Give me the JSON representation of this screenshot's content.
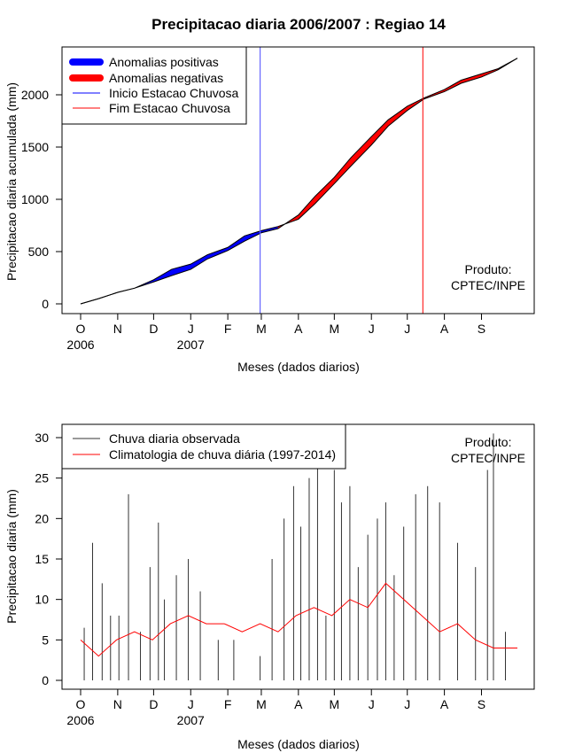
{
  "chart_data": [
    {
      "type": "area",
      "title": "Precipitacao diaria 2006/2007 : Regiao 14",
      "xlabel": "Meses (dados diarios)",
      "ylabel": "Precipitacao diaria acumulada (mm)",
      "ylim": [
        0,
        2400
      ],
      "yticks": [
        0,
        500,
        1000,
        1500,
        2000
      ],
      "month_labels": [
        "O",
        "N",
        "D",
        "J",
        "F",
        "M",
        "A",
        "M",
        "J",
        "J",
        "A",
        "S"
      ],
      "year_labels": [
        {
          "label": "2006",
          "month_index": 0
        },
        {
          "label": "2007",
          "month_index": 3
        }
      ],
      "x_days": [
        0,
        15,
        31,
        45,
        61,
        76,
        92,
        106,
        123,
        137,
        151,
        165,
        182,
        196,
        212,
        226,
        243,
        257,
        273,
        287,
        304,
        318,
        335,
        349,
        365
      ],
      "observed": [
        0,
        50,
        110,
        150,
        230,
        330,
        380,
        470,
        540,
        650,
        700,
        740,
        810,
        960,
        1150,
        1320,
        1520,
        1700,
        1850,
        1960,
        2030,
        2110,
        2170,
        2240,
        2350
      ],
      "climatology": [
        0,
        50,
        110,
        150,
        210,
        270,
        330,
        430,
        510,
        600,
        680,
        720,
        850,
        1030,
        1210,
        1400,
        1600,
        1760,
        1890,
        1970,
        2050,
        2140,
        2200,
        2250,
        2350
      ],
      "start_rainy_season_day": 150,
      "end_rainy_season_day": 286,
      "legend": [
        {
          "label": "Anomalias positivas",
          "color": "#0000ff",
          "style": "thick"
        },
        {
          "label": "Anomalias negativas",
          "color": "#ff0000",
          "style": "thick"
        },
        {
          "label": "Inicio Estacao Chuvosa",
          "color": "#0000ff",
          "style": "thin"
        },
        {
          "label": "Fim Estacao Chuvosa",
          "color": "#ff0000",
          "style": "thin"
        }
      ],
      "annotation": [
        "Produto:",
        "CPTEC/INPE"
      ]
    },
    {
      "type": "bar",
      "xlabel": "Meses (dados diarios)",
      "ylabel": "Precipitacao diaria (mm)",
      "ylim": [
        0,
        31
      ],
      "yticks": [
        0,
        5,
        10,
        15,
        20,
        25,
        30
      ],
      "month_labels": [
        "O",
        "N",
        "D",
        "J",
        "F",
        "M",
        "A",
        "M",
        "J",
        "J",
        "A",
        "S"
      ],
      "year_labels": [
        {
          "label": "2006",
          "month_index": 0
        },
        {
          "label": "2007",
          "month_index": 3
        }
      ],
      "series": [
        {
          "name": "Chuva diaria observada",
          "color": "#333333",
          "x_days": [
            3,
            10,
            18,
            25,
            32,
            40,
            50,
            58,
            65,
            70,
            80,
            90,
            100,
            115,
            128,
            150,
            160,
            170,
            178,
            184,
            191,
            198,
            205,
            212,
            218,
            225,
            232,
            240,
            248,
            255,
            262,
            270,
            280,
            290,
            300,
            315,
            330,
            340,
            345,
            355
          ],
          "values": [
            6.5,
            17,
            12,
            8,
            8,
            23,
            6,
            14,
            19.5,
            10,
            13,
            15,
            11,
            5,
            5,
            3,
            15,
            20,
            24,
            19,
            25,
            27,
            8,
            26,
            22,
            24,
            14,
            18,
            20,
            22,
            13,
            19,
            23,
            24,
            22,
            17,
            14,
            26,
            30.5,
            6
          ]
        },
        {
          "name": "Climatologia de chuva diária (1997-2014)",
          "color": "#ff0000",
          "x_days": [
            0,
            15,
            30,
            45,
            60,
            75,
            90,
            105,
            120,
            135,
            150,
            165,
            180,
            195,
            210,
            225,
            240,
            255,
            270,
            285,
            300,
            315,
            330,
            345,
            365
          ],
          "values": [
            5,
            3,
            5,
            6,
            5,
            7,
            8,
            7,
            7,
            6,
            7,
            6,
            8,
            9,
            8,
            10,
            9,
            12,
            10,
            8,
            6,
            7,
            5,
            4,
            4
          ]
        }
      ],
      "legend": [
        {
          "label": "Chuva diaria observada",
          "color": "#333333"
        },
        {
          "label": "Climatologia de chuva diária (1997-2014)",
          "color": "#ff0000"
        }
      ],
      "annotation": [
        "Produto:",
        "CPTEC/INPE"
      ]
    }
  ]
}
